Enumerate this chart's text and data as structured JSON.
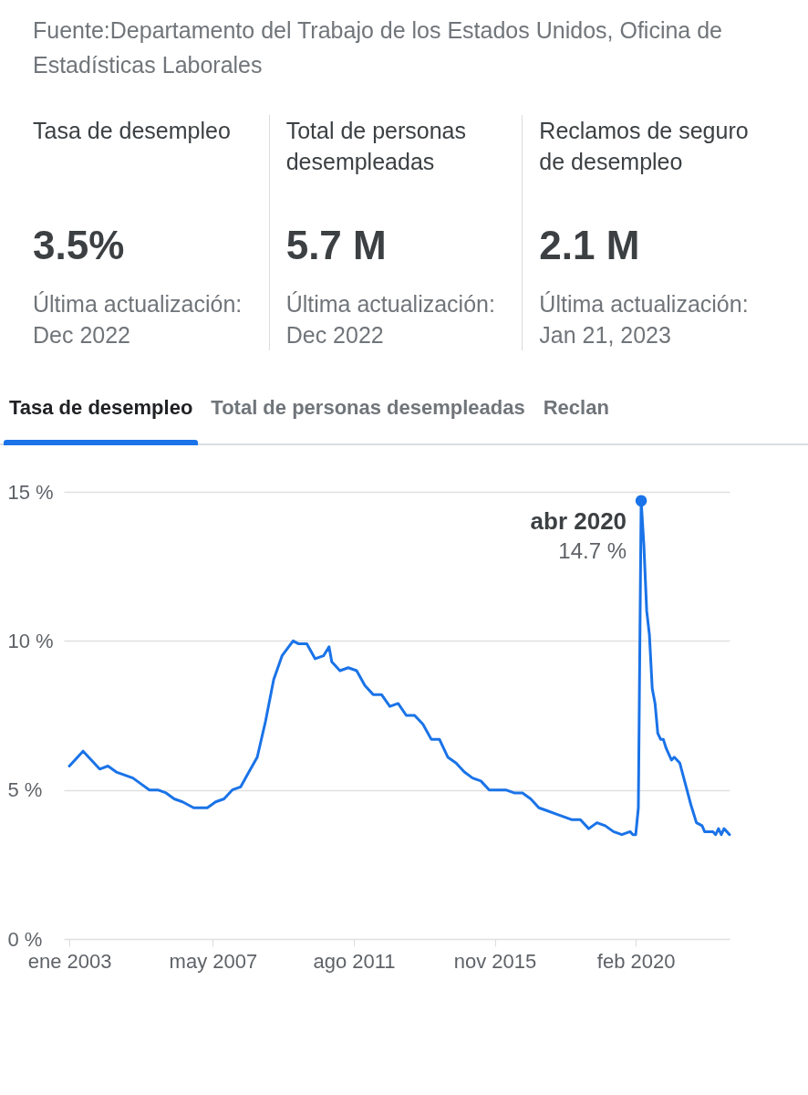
{
  "chart_data": [
    {
      "type": "other",
      "annotations": [
        "Fuente:Departamento del Trabajo de los Estados Unidos, Oficina de Estadísticas Laborales",
        "Tasa de desempleo",
        "3.5%",
        "Última actualización: Dec 2022",
        "Total de personas desempleadas",
        "5.7 M",
        "Última actualización: Dec 2022",
        "Reclamos de seguro de desempleo",
        "2.1 M",
        "Última actualización: Jan 21, 2023",
        "Tasa de desempleo",
        "Total de personas desempleadas",
        "Reclan"
      ]
    },
    {
      "type": "line",
      "grid": "y",
      "line_style": "solid",
      "x": [
        "2003-01",
        "2003-06",
        "2003-12",
        "2004-03",
        "2004-06",
        "2004-12",
        "2005-03",
        "2005-06",
        "2005-09",
        "2005-12",
        "2006-03",
        "2006-06",
        "2006-10",
        "2006-12",
        "2007-03",
        "2007-06",
        "2007-09",
        "2007-12",
        "2008-03",
        "2008-06",
        "2008-09",
        "2008-12",
        "2009-03",
        "2009-06",
        "2009-10",
        "2009-12",
        "2010-03",
        "2010-06",
        "2010-09",
        "2010-11",
        "2010-12",
        "2011-03",
        "2011-06",
        "2011-09",
        "2011-12",
        "2012-03",
        "2012-06",
        "2012-09",
        "2012-12",
        "2013-03",
        "2013-06",
        "2013-09",
        "2013-12",
        "2014-03",
        "2014-06",
        "2014-09",
        "2014-12",
        "2015-03",
        "2015-06",
        "2015-09",
        "2015-12",
        "2016-03",
        "2016-06",
        "2016-09",
        "2016-12",
        "2017-03",
        "2017-06",
        "2017-09",
        "2017-12",
        "2018-03",
        "2018-06",
        "2018-09",
        "2018-12",
        "2019-03",
        "2019-06",
        "2019-09",
        "2019-12",
        "2020-01",
        "2020-02",
        "2020-03",
        "2020-04",
        "2020-05",
        "2020-06",
        "2020-07",
        "2020-08",
        "2020-09",
        "2020-10",
        "2020-11",
        "2020-12",
        "2021-01",
        "2021-03",
        "2021-04",
        "2021-06",
        "2021-08",
        "2021-10",
        "2021-12",
        "2022-02",
        "2022-03",
        "2022-06",
        "2022-07",
        "2022-08",
        "2022-09",
        "2022-10",
        "2022-11",
        "2022-12"
      ],
      "series": [
        {
          "color": "#1a73e8",
          "values": [
            5.8,
            6.3,
            5.7,
            5.8,
            5.6,
            5.4,
            5.2,
            5.0,
            5.0,
            4.9,
            4.7,
            4.6,
            4.4,
            4.4,
            4.4,
            4.6,
            4.7,
            5.0,
            5.1,
            5.6,
            6.1,
            7.3,
            8.7,
            9.5,
            10.0,
            9.9,
            9.9,
            9.4,
            9.5,
            9.8,
            9.3,
            9.0,
            9.1,
            9.0,
            8.5,
            8.2,
            8.2,
            7.8,
            7.9,
            7.5,
            7.5,
            7.2,
            6.7,
            6.7,
            6.1,
            5.9,
            5.6,
            5.4,
            5.3,
            5.0,
            5.0,
            5.0,
            4.9,
            4.9,
            4.7,
            4.4,
            4.3,
            4.2,
            4.1,
            4.0,
            4.0,
            3.7,
            3.9,
            3.8,
            3.6,
            3.5,
            3.6,
            3.5,
            3.5,
            4.4,
            14.7,
            13.2,
            11.0,
            10.2,
            8.4,
            7.9,
            6.9,
            6.7,
            6.7,
            6.4,
            6.0,
            6.1,
            5.9,
            5.2,
            4.5,
            3.9,
            3.8,
            3.6,
            3.6,
            3.5,
            3.7,
            3.5,
            3.7,
            3.6,
            3.5
          ]
        }
      ],
      "xlim": [
        "2002-11",
        "2022-12"
      ],
      "xticks": [
        {
          "value": "2003-01",
          "label": "ene 2003"
        },
        {
          "value": "2007-05",
          "label": "may 2007"
        },
        {
          "value": "2011-08",
          "label": "ago 2011"
        },
        {
          "value": "2015-11",
          "label": "nov 2015"
        },
        {
          "value": "2020-02",
          "label": "feb 2020"
        }
      ],
      "ylim": [
        0,
        15
      ],
      "yticks": [
        {
          "value": 0,
          "label": "0 %"
        },
        {
          "value": 5,
          "label": "5 %"
        },
        {
          "value": 10,
          "label": "10 %"
        },
        {
          "value": 15,
          "label": "15 %"
        }
      ],
      "annotations": [
        {
          "text": "abr 2020\n14.7 %",
          "x": "2020-04",
          "y": 14.7
        }
      ]
    }
  ]
}
